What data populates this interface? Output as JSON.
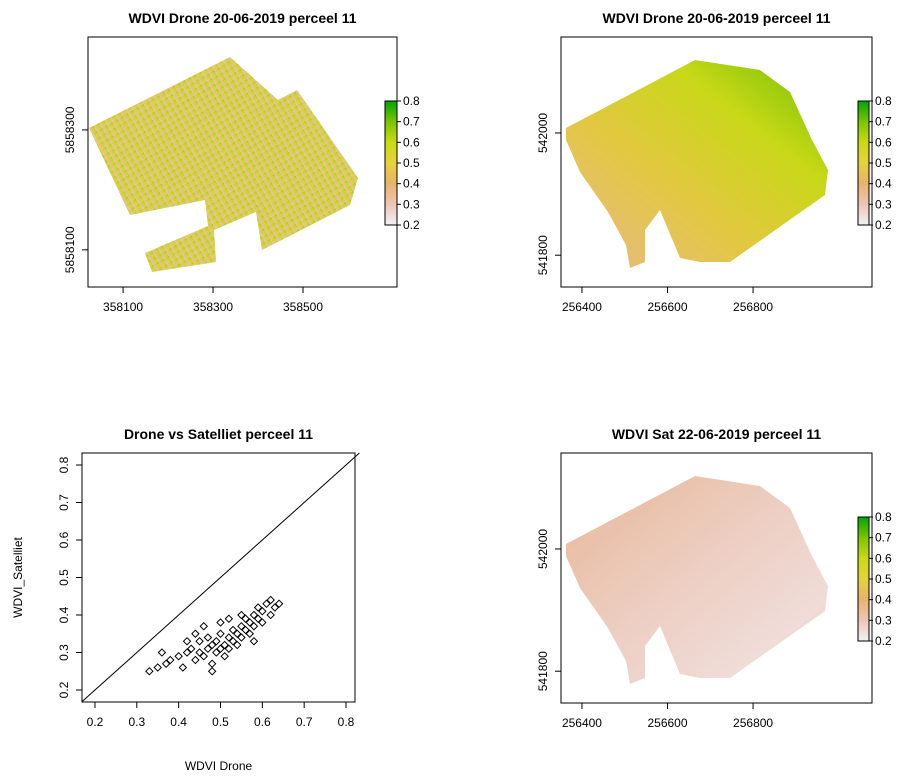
{
  "chart_data": [
    {
      "type": "raster",
      "title": "WDVI Drone 20-06-2019 perceel 11",
      "xlim": [
        358022,
        358709
      ],
      "ylim": [
        5858038,
        5858455
      ],
      "xticks": [
        358100,
        358300,
        358500
      ],
      "yticks": [
        5858100,
        5858300
      ],
      "colorbar": {
        "lim": [
          0.2,
          0.8
        ],
        "ticks": [
          0.2,
          0.3,
          0.4,
          0.5,
          0.6,
          0.7,
          0.8
        ],
        "colors": [
          "#f2f2f2",
          "#efc4b6",
          "#e8b36a",
          "#e6d23a",
          "#c9dc12",
          "#7cc400",
          "#00a600"
        ]
      }
    },
    {
      "type": "raster",
      "title": "WDVI Drone 20-06-2019 perceel 11",
      "xlim": [
        256351,
        257078
      ],
      "ylim": [
        541748,
        542157
      ],
      "xticks": [
        256400,
        256600,
        256800
      ],
      "yticks": [
        541800,
        542000
      ],
      "colorbar": {
        "lim": [
          0.2,
          0.8
        ],
        "ticks": [
          0.2,
          0.3,
          0.4,
          0.5,
          0.6,
          0.7,
          0.8
        ],
        "colors": [
          "#f2f2f2",
          "#efc4b6",
          "#e8b36a",
          "#e6d23a",
          "#c9dc12",
          "#7cc400",
          "#00a600"
        ]
      }
    },
    {
      "type": "scatter",
      "title": "Drone vs Satelliet perceel 11",
      "x_label": "WDVI  Drone",
      "y_label": "WDVI_Satelliet",
      "xlim": [
        0.169,
        0.8215
      ],
      "ylim": [
        0.168,
        0.832
      ],
      "xticks": [
        0.2,
        0.3,
        0.4,
        0.5,
        0.6,
        0.7,
        0.8
      ],
      "yticks": [
        0.2,
        0.3,
        0.4,
        0.5,
        0.6,
        0.7,
        0.8
      ],
      "x": [
        0.33,
        0.35,
        0.37,
        0.38,
        0.4,
        0.41,
        0.42,
        0.43,
        0.44,
        0.45,
        0.45,
        0.46,
        0.47,
        0.47,
        0.48,
        0.48,
        0.49,
        0.49,
        0.5,
        0.5,
        0.51,
        0.51,
        0.52,
        0.52,
        0.53,
        0.53,
        0.54,
        0.54,
        0.55,
        0.55,
        0.56,
        0.56,
        0.57,
        0.57,
        0.58,
        0.58,
        0.59,
        0.59,
        0.6,
        0.6,
        0.61,
        0.62,
        0.63,
        0.64,
        0.42,
        0.44,
        0.46,
        0.5,
        0.52,
        0.55,
        0.48,
        0.58,
        0.36,
        0.62
      ],
      "values": [
        0.25,
        0.26,
        0.27,
        0.28,
        0.29,
        0.26,
        0.3,
        0.31,
        0.28,
        0.3,
        0.33,
        0.29,
        0.31,
        0.34,
        0.32,
        0.27,
        0.33,
        0.3,
        0.31,
        0.35,
        0.32,
        0.29,
        0.34,
        0.31,
        0.36,
        0.33,
        0.35,
        0.32,
        0.37,
        0.34,
        0.36,
        0.39,
        0.38,
        0.35,
        0.4,
        0.37,
        0.39,
        0.42,
        0.41,
        0.38,
        0.43,
        0.4,
        0.42,
        0.43,
        0.33,
        0.35,
        0.37,
        0.38,
        0.39,
        0.4,
        0.25,
        0.33,
        0.3,
        0.44
      ],
      "color": "#000000"
    },
    {
      "type": "raster",
      "title": "WDVI Sat 22-06-2019 perceel 11",
      "xlim": [
        256351,
        257078
      ],
      "ylim": [
        541748,
        542157
      ],
      "xticks": [
        256400,
        256600,
        256800
      ],
      "yticks": [
        541800,
        542000
      ],
      "colorbar": {
        "lim": [
          0.2,
          0.8
        ],
        "ticks": [
          0.2,
          0.3,
          0.4,
          0.5,
          0.6,
          0.7,
          0.8
        ],
        "colors": [
          "#f2f2f2",
          "#efc4b6",
          "#e8b36a",
          "#e6d23a",
          "#c9dc12",
          "#7cc400",
          "#00a600"
        ]
      }
    }
  ]
}
